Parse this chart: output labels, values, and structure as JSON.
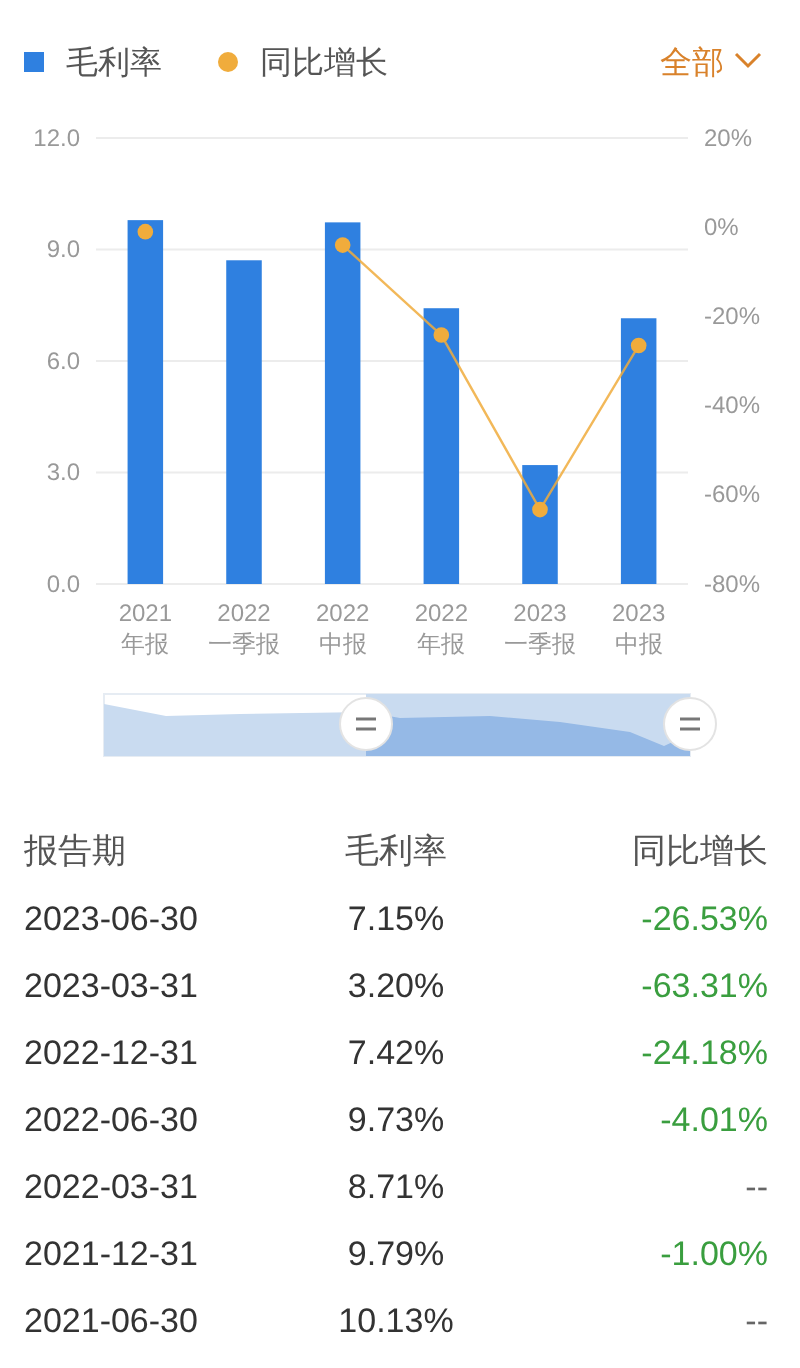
{
  "chart_data": [
    {
      "type": "bar",
      "categories": [
        "2021\n年报",
        "2022\n一季报",
        "2022\n中报",
        "2022\n年报",
        "2023\n一季报",
        "2023\n中报"
      ],
      "series": [
        {
          "name": "毛利率",
          "type": "bar",
          "color": "#2f80e0",
          "values": [
            9.79,
            8.71,
            9.73,
            7.42,
            3.2,
            7.15
          ]
        },
        {
          "name": "同比增长",
          "type": "line",
          "axis": "y2",
          "color": "#f0ac3c",
          "values": [
            -1.0,
            null,
            -4.01,
            -24.18,
            -63.31,
            -26.53
          ]
        }
      ],
      "ylim": [
        0,
        12
      ],
      "yticks": [
        {
          "value": 0,
          "label": "0.0"
        },
        {
          "value": 3,
          "label": "3.0"
        },
        {
          "value": 6,
          "label": "6.0"
        },
        {
          "value": 9,
          "label": "9.0"
        },
        {
          "value": 12,
          "label": "12.0"
        }
      ],
      "y2lim": [
        -80,
        20
      ],
      "y2ticks": [
        {
          "value": -80,
          "label": "-80%"
        },
        {
          "value": -60,
          "label": "-60%"
        },
        {
          "value": -40,
          "label": "-40%"
        },
        {
          "value": -20,
          "label": "-20%"
        },
        {
          "value": 0,
          "label": "0%"
        },
        {
          "value": 20,
          "label": "20%"
        }
      ],
      "grid": "y",
      "legend": "top left",
      "marker": "circle",
      "annotations": [
        "全部"
      ]
    },
    {
      "type": "other",
      "xlabel": "报告期",
      "categories": [
        "2023-06-30",
        "2023-03-31",
        "2022-12-31",
        "2022-06-30",
        "2022-03-31",
        "2021-12-31",
        "2021-06-30"
      ],
      "series": [
        {
          "name": "毛利率",
          "values": [
            7.15,
            3.2,
            7.42,
            9.73,
            8.71,
            9.79,
            10.13
          ],
          "value_labels": [
            "7.15%",
            "3.20%",
            "7.42%",
            "9.73%",
            "8.71%",
            "9.79%",
            "10.13%"
          ]
        },
        {
          "name": "同比增长",
          "values": [
            -26.53,
            -63.31,
            -24.18,
            -4.01,
            null,
            -1.0,
            null
          ],
          "value_labels": [
            "-26.53%",
            "-63.31%",
            "-24.18%",
            "-4.01%",
            "--",
            "-1.00%",
            "--"
          ]
        }
      ]
    }
  ]
}
